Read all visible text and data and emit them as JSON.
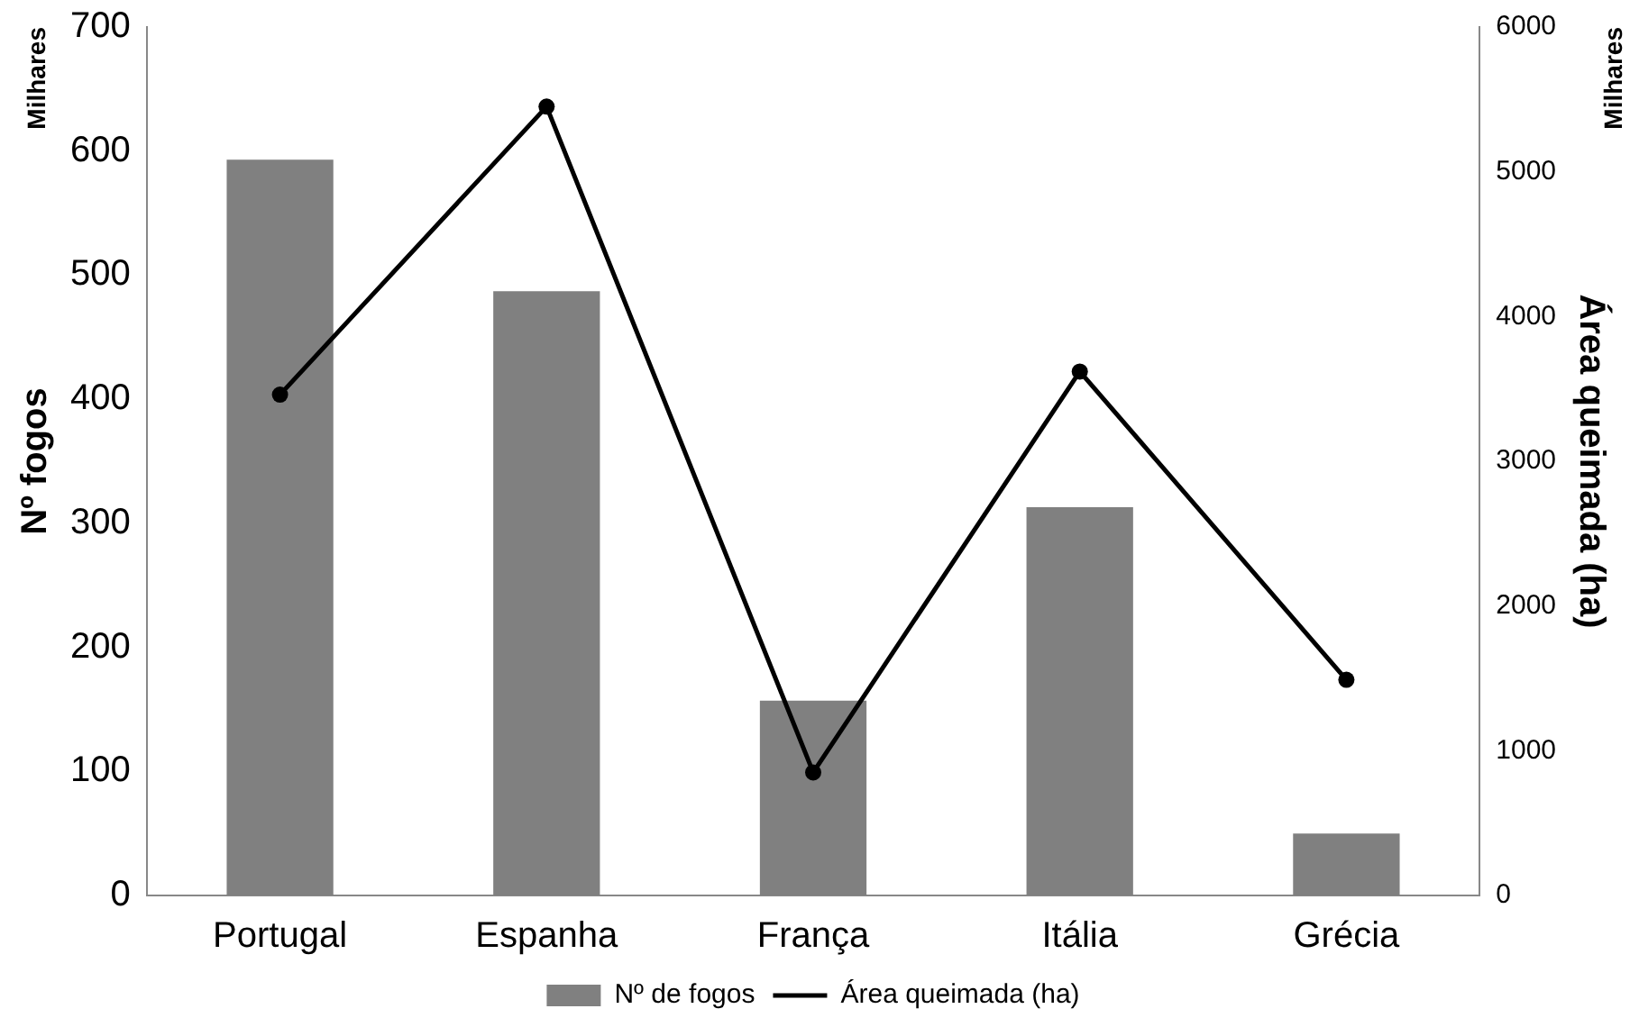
{
  "chart_data": {
    "type": "bar",
    "categories": [
      "Portugal",
      "Espanha",
      "França",
      "Itália",
      "Grécia"
    ],
    "series": [
      {
        "name": "Nº de fogos",
        "color": "#808080",
        "values": [
          593,
          487,
          157,
          313,
          50
        ]
      },
      {
        "name": "Área queimada (ha)",
        "type": "line",
        "axis": "y2",
        "color": "#000000",
        "values": [
          3460,
          5450,
          850,
          3620,
          1490
        ]
      }
    ],
    "ylabel": "Nº fogos",
    "y2label": "Área queimada (ha)",
    "ylim": [
      0,
      700
    ],
    "yticks": [
      0,
      100,
      200,
      300,
      400,
      500,
      600,
      700
    ],
    "y2lim": [
      0,
      6000
    ],
    "y2ticks": [
      0,
      1000,
      2000,
      3000,
      4000,
      5000,
      6000
    ],
    "annotations": [
      "Milhares",
      "Milhares"
    ],
    "marker": "circle",
    "line_style": "solid",
    "grid": false,
    "legend": "bottom"
  }
}
